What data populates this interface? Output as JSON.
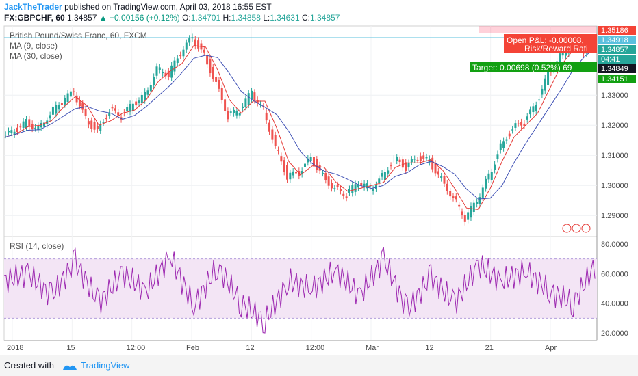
{
  "header": {
    "author": "JackTheTrader",
    "published_text": "published on TradingView.com, April 03, 2018 16:55 EST",
    "symbol": "FX:GBPCHF, 60",
    "last": "1.34857",
    "change": "+0.00156 (+0.12%)",
    "o_label": "O:",
    "o_value": "1.34701",
    "h_label": "H:",
    "h_value": "1.34858",
    "l_label": "L:",
    "l_value": "1.34631",
    "c_label": "C:",
    "c_value": "1.34857"
  },
  "main_pane": {
    "legend_title": "British Pound/Swiss Franc, 60, FXCM",
    "legend_ma1": "MA (9, close)",
    "legend_ma2": "MA (30, close)",
    "trade_box": {
      "pnl": "Open P&L: -0.00008,",
      "rr": "Risk/Reward Rati",
      "target": "Target: 0.00698 (0.52%) 69"
    },
    "price_tags": [
      "1.35186",
      "1.34918",
      "1.34857",
      "04:41",
      "1.34849",
      "1.34151"
    ],
    "colors": {
      "candle_up": "#26a69a",
      "candle_down": "#ef5350",
      "ma9": "#e53935",
      "ma30": "#3f51b5",
      "stop": "#ff1744",
      "target": "#1e9e1e"
    }
  },
  "rsi_pane": {
    "legend": "RSI (14, close)",
    "color": "#9c27b0",
    "band_color": "#f3e5f5"
  },
  "footer": {
    "created_with": "Created with",
    "brand": "TradingView"
  },
  "chart_data": [
    {
      "type": "candlestick",
      "title": "British Pound/Swiss Franc, 60, FXCM",
      "ylim": [
        1.283,
        1.353
      ],
      "y_ticks": [
        1.29,
        1.3,
        1.31,
        1.32,
        1.33
      ],
      "y_tick_labels": [
        "1.29000",
        "1.30000",
        "1.31000",
        "1.32000",
        "1.33000"
      ],
      "x_tick_labels": [
        "2018",
        "15",
        "12:00",
        "Feb",
        "12",
        "12:00",
        "Mar",
        "12",
        "21",
        "Apr"
      ],
      "x": [
        0,
        2,
        4,
        6,
        8,
        10,
        12,
        14,
        16,
        18,
        20,
        22,
        24,
        26,
        28,
        30,
        32,
        34,
        36,
        38,
        40,
        42,
        44,
        46,
        48,
        50,
        52,
        54,
        56,
        58,
        60,
        62,
        64,
        66,
        68,
        70,
        72,
        74,
        76,
        78,
        80,
        82,
        84,
        86,
        88,
        90,
        92,
        94,
        96,
        98,
        100
      ],
      "close": [
        1.316,
        1.318,
        1.321,
        1.319,
        1.324,
        1.328,
        1.331,
        1.322,
        1.318,
        1.325,
        1.323,
        1.327,
        1.33,
        1.339,
        1.337,
        1.344,
        1.349,
        1.343,
        1.334,
        1.323,
        1.325,
        1.331,
        1.325,
        1.313,
        1.303,
        1.304,
        1.309,
        1.303,
        1.299,
        1.297,
        1.301,
        1.299,
        1.303,
        1.309,
        1.306,
        1.309,
        1.308,
        1.302,
        1.296,
        1.289,
        1.295,
        1.303,
        1.313,
        1.319,
        1.321,
        1.327,
        1.337,
        1.343,
        1.347,
        1.345,
        1.349
      ],
      "series": [
        {
          "name": "MA (9, close)",
          "color": "#e53935"
        },
        {
          "name": "MA (30, close)",
          "color": "#3f51b5"
        }
      ]
    },
    {
      "type": "line",
      "title": "RSI (14, close)",
      "ylim": [
        15,
        85
      ],
      "y_ticks": [
        20,
        40,
        60,
        80
      ],
      "y_tick_labels": [
        "20.0000",
        "40.0000",
        "60.0000",
        "80.0000"
      ],
      "bands": [
        30,
        70
      ],
      "x": [
        0,
        4,
        8,
        12,
        16,
        20,
        24,
        28,
        32,
        36,
        40,
        44,
        48,
        52,
        56,
        60,
        64,
        68,
        72,
        76,
        80,
        84,
        88,
        92,
        96,
        100
      ],
      "values": [
        55,
        60,
        45,
        68,
        40,
        60,
        48,
        72,
        38,
        65,
        40,
        28,
        55,
        50,
        62,
        45,
        70,
        35,
        58,
        40,
        66,
        55,
        62,
        48,
        40,
        68
      ]
    }
  ]
}
